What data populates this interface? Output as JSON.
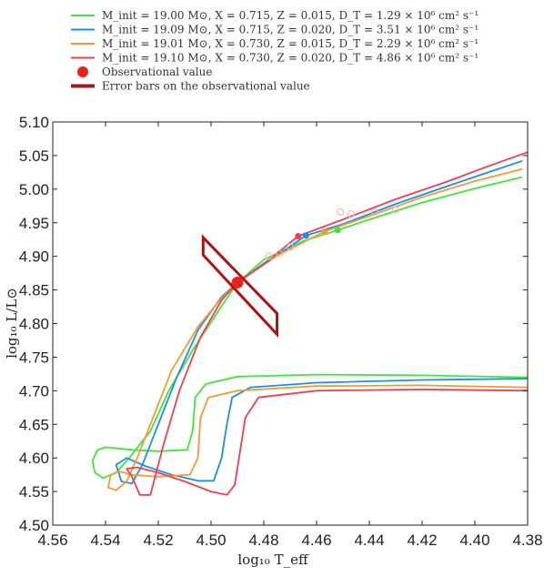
{
  "chart_data": {
    "type": "line",
    "title": "",
    "xlabel": "log₁₀ T_eff",
    "ylabel": "log₁₀ L/L⊙",
    "xlim": [
      4.56,
      4.38
    ],
    "ylim": [
      4.5,
      5.1
    ],
    "x_reversed": true,
    "grid": false,
    "legend_position": "top",
    "x_ticks": [
      "4.56",
      "4.54",
      "4.52",
      "4.50",
      "4.48",
      "4.46",
      "4.44",
      "4.42",
      "4.40",
      "4.38"
    ],
    "y_ticks": [
      "4.50",
      "4.55",
      "4.60",
      "4.65",
      "4.70",
      "4.75",
      "4.80",
      "4.85",
      "4.90",
      "4.95",
      "5.00",
      "5.05",
      "5.10"
    ],
    "series": [
      {
        "name": "M_init = 19.00 M⊙, X = 0.715, Z = 0.015, D_T = 1.29 × 10⁶ cm² s⁻¹",
        "color": "#44e53a",
        "points": [
          [
            4.38,
            4.72
          ],
          [
            4.42,
            4.723
          ],
          [
            4.46,
            4.724
          ],
          [
            4.49,
            4.721
          ],
          [
            4.502,
            4.71
          ],
          [
            4.506,
            4.69
          ],
          [
            4.507,
            4.64
          ],
          [
            4.509,
            4.612
          ],
          [
            4.52,
            4.61
          ],
          [
            4.53,
            4.612
          ],
          [
            4.535,
            4.614
          ],
          [
            4.54,
            4.616
          ],
          [
            4.543,
            4.612
          ],
          [
            4.545,
            4.596
          ],
          [
            4.544,
            4.578
          ],
          [
            4.541,
            4.57
          ],
          [
            4.536,
            4.578
          ],
          [
            4.531,
            4.6
          ],
          [
            4.523,
            4.64
          ],
          [
            4.516,
            4.7
          ],
          [
            4.507,
            4.76
          ],
          [
            4.497,
            4.82
          ],
          [
            4.49,
            4.861
          ],
          [
            4.48,
            4.895
          ],
          [
            4.465,
            4.923
          ],
          [
            4.452,
            4.939
          ],
          [
            4.44,
            4.955
          ],
          [
            4.42,
            4.98
          ],
          [
            4.4,
            5.001
          ],
          [
            4.382,
            5.018
          ]
        ],
        "marker": [
          4.452,
          4.939
        ]
      },
      {
        "name": "M_init = 19.09 M⊙, X = 0.715, Z = 0.020, D_T = 3.51 × 10⁶ cm² s⁻¹",
        "color": "#1e8fe6",
        "points": [
          [
            4.38,
            4.718
          ],
          [
            4.42,
            4.716
          ],
          [
            4.46,
            4.712
          ],
          [
            4.485,
            4.705
          ],
          [
            4.492,
            4.69
          ],
          [
            4.494,
            4.65
          ],
          [
            4.496,
            4.6
          ],
          [
            4.499,
            4.566
          ],
          [
            4.505,
            4.566
          ],
          [
            4.515,
            4.575
          ],
          [
            4.525,
            4.588
          ],
          [
            4.532,
            4.6
          ],
          [
            4.536,
            4.59
          ],
          [
            4.534,
            4.565
          ],
          [
            4.53,
            4.562
          ],
          [
            4.526,
            4.59
          ],
          [
            4.52,
            4.65
          ],
          [
            4.513,
            4.72
          ],
          [
            4.505,
            4.79
          ],
          [
            4.496,
            4.84
          ],
          [
            4.49,
            4.861
          ],
          [
            4.478,
            4.893
          ],
          [
            4.464,
            4.931
          ],
          [
            4.45,
            4.948
          ],
          [
            4.43,
            4.978
          ],
          [
            4.41,
            5.005
          ],
          [
            4.395,
            5.025
          ],
          [
            4.382,
            5.042
          ]
        ],
        "marker": [
          4.464,
          4.931
        ]
      },
      {
        "name": "M_init = 19.01 M⊙, X = 0.730, Z = 0.015, D_T = 2.29 × 10⁶ cm² s⁻¹",
        "color": "#f29b35",
        "points": [
          [
            4.38,
            4.705
          ],
          [
            4.42,
            4.708
          ],
          [
            4.46,
            4.707
          ],
          [
            4.49,
            4.7
          ],
          [
            4.501,
            4.69
          ],
          [
            4.504,
            4.66
          ],
          [
            4.505,
            4.6
          ],
          [
            4.508,
            4.575
          ],
          [
            4.52,
            4.572
          ],
          [
            4.53,
            4.575
          ],
          [
            4.535,
            4.58
          ],
          [
            4.538,
            4.575
          ],
          [
            4.539,
            4.556
          ],
          [
            4.536,
            4.552
          ],
          [
            4.532,
            4.565
          ],
          [
            4.528,
            4.6
          ],
          [
            4.522,
            4.66
          ],
          [
            4.515,
            4.73
          ],
          [
            4.505,
            4.795
          ],
          [
            4.496,
            4.838
          ],
          [
            4.49,
            4.861
          ],
          [
            4.478,
            4.895
          ],
          [
            4.457,
            4.937
          ],
          [
            4.44,
            4.96
          ],
          [
            4.42,
            4.988
          ],
          [
            4.4,
            5.012
          ],
          [
            4.382,
            5.03
          ]
        ],
        "marker": [
          4.457,
          4.937
        ]
      },
      {
        "name": "M_init = 19.10 M⊙, X = 0.730, Z = 0.020, D_T = 4.86 × 10⁶ cm² s⁻¹",
        "color": "#ee4054",
        "points": [
          [
            4.38,
            4.7
          ],
          [
            4.42,
            4.702
          ],
          [
            4.46,
            4.7
          ],
          [
            4.482,
            4.69
          ],
          [
            4.487,
            4.66
          ],
          [
            4.489,
            4.61
          ],
          [
            4.491,
            4.56
          ],
          [
            4.494,
            4.545
          ],
          [
            4.5,
            4.55
          ],
          [
            4.51,
            4.565
          ],
          [
            4.52,
            4.578
          ],
          [
            4.528,
            4.586
          ],
          [
            4.532,
            4.584
          ],
          [
            4.53,
            4.572
          ],
          [
            4.527,
            4.545
          ],
          [
            4.523,
            4.545
          ],
          [
            4.518,
            4.62
          ],
          [
            4.512,
            4.7
          ],
          [
            4.504,
            4.78
          ],
          [
            4.496,
            4.835
          ],
          [
            4.49,
            4.861
          ],
          [
            4.478,
            4.895
          ],
          [
            4.467,
            4.93
          ],
          [
            4.45,
            4.955
          ],
          [
            4.43,
            4.985
          ],
          [
            4.41,
            5.012
          ],
          [
            4.395,
            5.034
          ],
          [
            4.38,
            5.055
          ]
        ],
        "marker": [
          4.467,
          4.93
        ]
      }
    ],
    "observational_value": {
      "label": "Observational value",
      "x": 4.49,
      "y": 4.861,
      "color": "#e8231a"
    },
    "error_bars": {
      "label": "Error bars on the observational value",
      "color": "#aa1515",
      "polygon": [
        [
          4.503,
          4.928
        ],
        [
          4.503,
          4.902
        ],
        [
          4.475,
          4.784
        ],
        [
          4.475,
          4.815
        ]
      ]
    },
    "open_markers": [
      [
        4.478,
        4.9
      ],
      [
        4.474,
        4.904
      ],
      [
        4.47,
        4.914
      ],
      [
        4.451,
        4.966
      ],
      [
        4.447,
        4.963
      ],
      [
        4.438,
        4.966
      ],
      [
        4.43,
        4.969
      ]
    ],
    "legend": [
      {
        "text": "M_init  = 19.00 M⊙, X = 0.715, Z = 0.015, D_T = 1.29 × 10⁶ cm² s⁻¹",
        "color": "#44e53a"
      },
      {
        "text": "M_init  = 19.09 M⊙, X = 0.715, Z = 0.020, D_T = 3.51 × 10⁶ cm² s⁻¹",
        "color": "#1e8fe6"
      },
      {
        "text": "M_init  = 19.01 M⊙, X = 0.730, Z = 0.015, D_T = 2.29 × 10⁶ cm² s⁻¹",
        "color": "#f29b35"
      },
      {
        "text": "M_init  = 19.10 M⊙, X = 0.730, Z = 0.020, D_T = 4.86 × 10⁶ cm² s⁻¹",
        "color": "#ee4054"
      },
      {
        "text": "Observational value",
        "color": "#e8231a"
      },
      {
        "text": "Error bars on the observational value",
        "color": "#aa1515"
      }
    ]
  }
}
